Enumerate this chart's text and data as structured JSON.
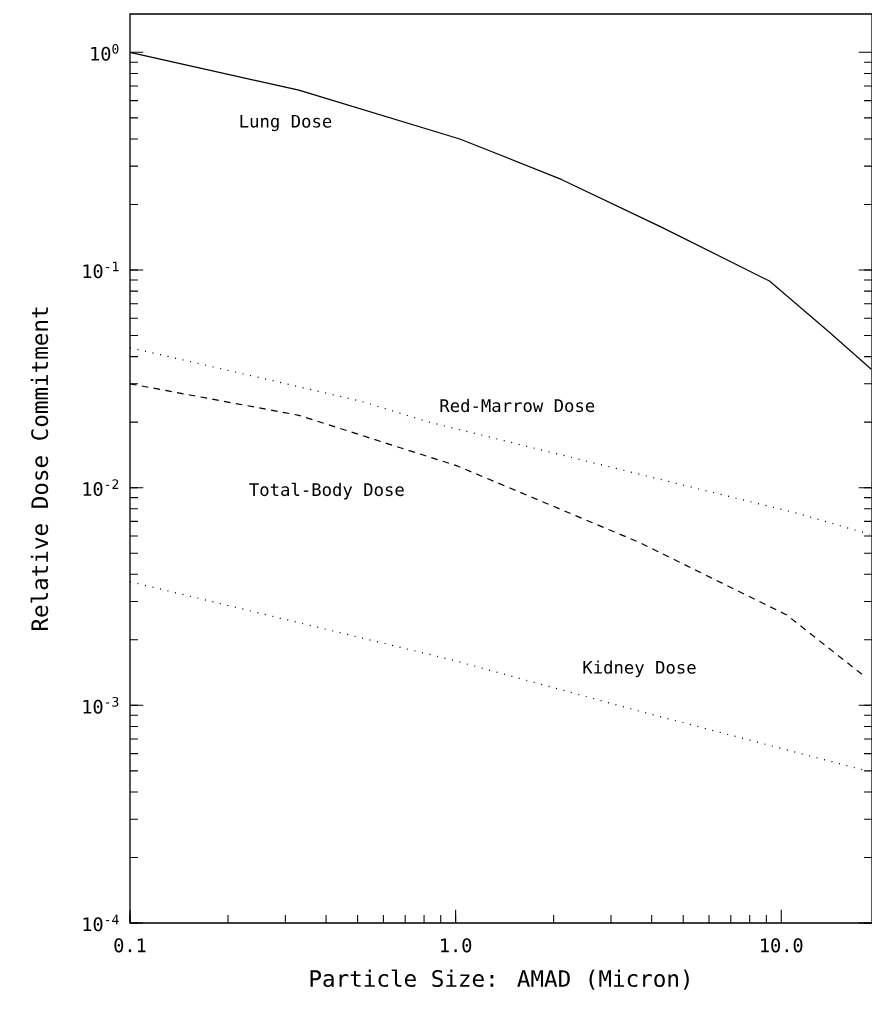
{
  "chart_data": {
    "type": "line",
    "xlabel": "Particle Size:   AMAD   (Micron)",
    "ylabel": "Relative Dose Commitment",
    "log": "xy",
    "xlim": [
      0.1,
      19
    ],
    "ylim": [
      0.0001,
      1.5
    ],
    "xticks": [
      0.1,
      {
        "value": 1,
        "label": "1.0"
      },
      {
        "value": 10,
        "label": "10.0"
      }
    ],
    "yticks": [
      {
        "value": 0.0001,
        "label": "10$^{-4}$"
      },
      {
        "value": 0.001,
        "label": "10$^{-3}$"
      },
      {
        "value": 0.01,
        "label": "10$^{-2}$"
      },
      {
        "value": 0.1,
        "label": "10$^{-1}$"
      },
      {
        "value": 1,
        "label": "10$^{0}$"
      }
    ],
    "grid": false,
    "legend": false,
    "marker": "none",
    "series": [
      {
        "name": "Lung Dose",
        "color": "#000000",
        "line_style": "solid",
        "x": [
          0.1,
          0.33,
          1.03,
          2.12,
          4.3,
          9.2,
          14,
          18.9
        ],
        "values": [
          1.0,
          0.67,
          0.4,
          0.26,
          0.157,
          0.089,
          0.052,
          0.035
        ]
      },
      {
        "name": "Red-Marrow Dose",
        "color": "#000000",
        "line_style": "dotted",
        "x": [
          0.1,
          0.51,
          0.83,
          11.3,
          18.7
        ],
        "values": [
          0.044,
          0.025,
          0.02,
          0.0076,
          0.0061
        ]
      },
      {
        "name": "Total-Body Dose",
        "color": "#000000",
        "line_style": "dashed",
        "x": [
          0.1,
          0.33,
          1.01,
          3.67,
          10.4,
          17.9
        ],
        "values": [
          0.03,
          0.0215,
          0.0126,
          0.0056,
          0.0026,
          0.00137
        ]
      },
      {
        "name": "Kidney Dose",
        "color": "#000000",
        "line_style": "dotted",
        "x": [
          0.1,
          0.97,
          3.67,
          18.3
        ],
        "values": [
          0.0037,
          0.00162,
          0.00094,
          0.0005
        ]
      }
    ]
  }
}
